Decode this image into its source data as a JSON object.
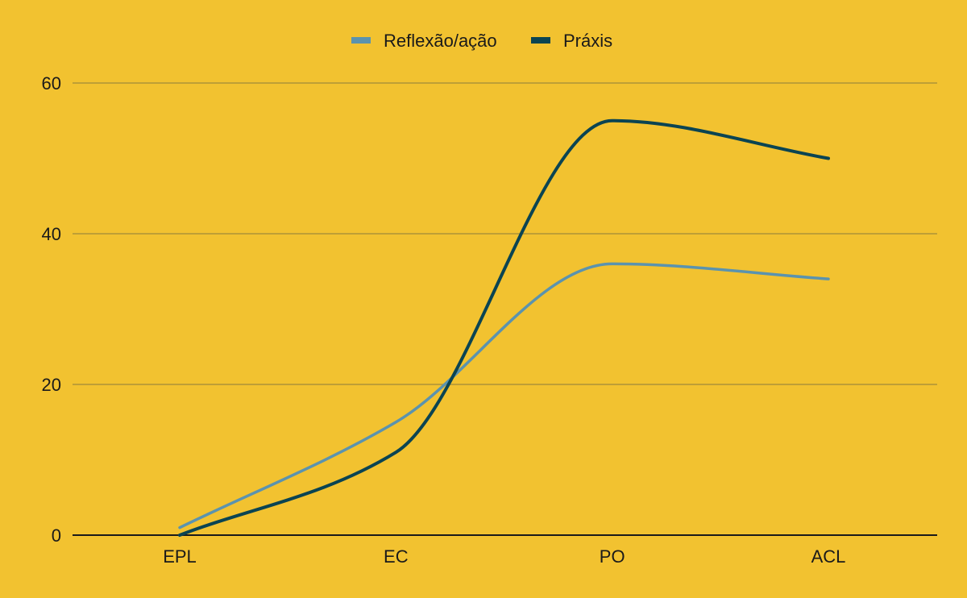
{
  "chart_data": {
    "type": "line",
    "title": "",
    "xlabel": "",
    "ylabel": "",
    "categories": [
      "EPL",
      "EC",
      "PO",
      "ACL"
    ],
    "series": [
      {
        "name": "Reflexão/ação",
        "values": [
          1,
          15,
          36,
          34
        ],
        "color": "#5B93AE"
      },
      {
        "name": "Práxis",
        "values": [
          0,
          11,
          55,
          50
        ],
        "color": "#0B4452"
      }
    ],
    "ylim": [
      0,
      60
    ],
    "yticks": [
      0,
      20,
      40,
      60
    ],
    "grid": true,
    "legend_position": "top-center",
    "smooth": true,
    "colors": {
      "background": "#F2C230",
      "grid": "#9E8A3A",
      "axis": "#1a1a1a"
    }
  }
}
